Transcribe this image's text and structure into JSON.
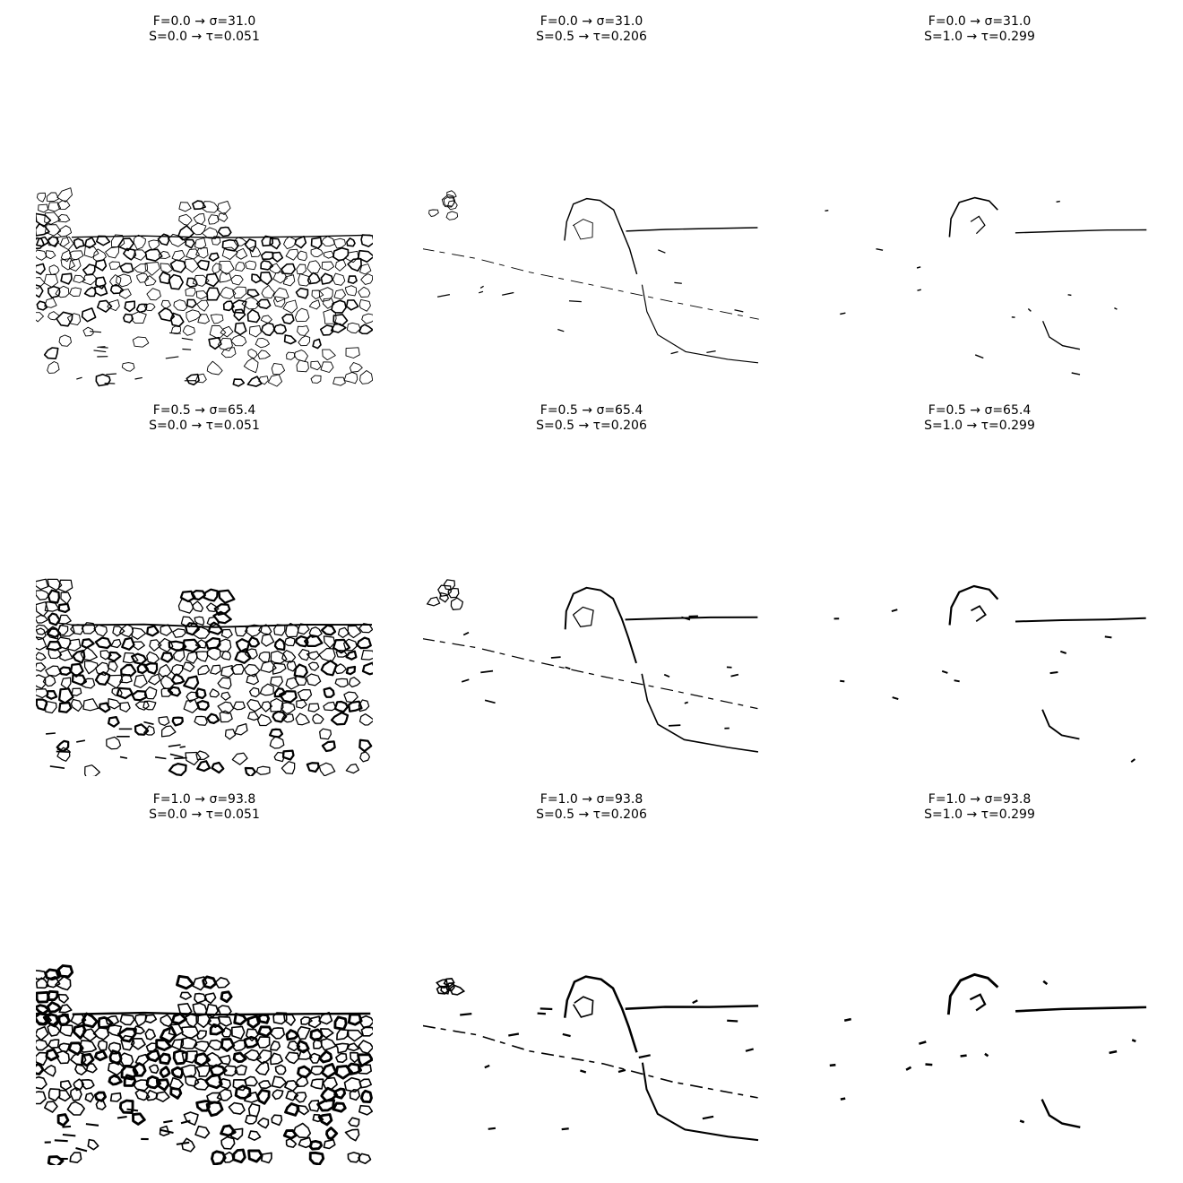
{
  "figure": {
    "columns": 3,
    "rows": 3,
    "background": "#ffffff",
    "ink": "#000000"
  },
  "panels": [
    {
      "row": 0,
      "col": 0,
      "line1": "F=0.0 → σ=31.0",
      "line2": "S=0.0 → τ=0.051",
      "variant": "dense"
    },
    {
      "row": 0,
      "col": 1,
      "line1": "F=0.0 → σ=31.0",
      "line2": "S=0.5 → τ=0.206",
      "variant": "medium"
    },
    {
      "row": 0,
      "col": 2,
      "line1": "F=0.0 → σ=31.0",
      "line2": "S=1.0 → τ=0.299",
      "variant": "sparse"
    },
    {
      "row": 1,
      "col": 0,
      "line1": "F=0.5 → σ=65.4",
      "line2": "S=0.0 → τ=0.051",
      "variant": "dense"
    },
    {
      "row": 1,
      "col": 1,
      "line1": "F=0.5 → σ=65.4",
      "line2": "S=0.5 → τ=0.206",
      "variant": "medium"
    },
    {
      "row": 1,
      "col": 2,
      "line1": "F=0.5 → σ=65.4",
      "line2": "S=1.0 → τ=0.299",
      "variant": "sparse"
    },
    {
      "row": 2,
      "col": 0,
      "line1": "F=1.0 → σ=93.8",
      "line2": "S=0.0 → τ=0.051",
      "variant": "dense"
    },
    {
      "row": 2,
      "col": 1,
      "line1": "F=1.0 → σ=93.8",
      "line2": "S=0.5 → τ=0.206",
      "variant": "medium"
    },
    {
      "row": 2,
      "col": 2,
      "line1": "F=1.0 → σ=93.8",
      "line2": "S=1.0 → τ=0.299",
      "variant": "sparse"
    }
  ]
}
